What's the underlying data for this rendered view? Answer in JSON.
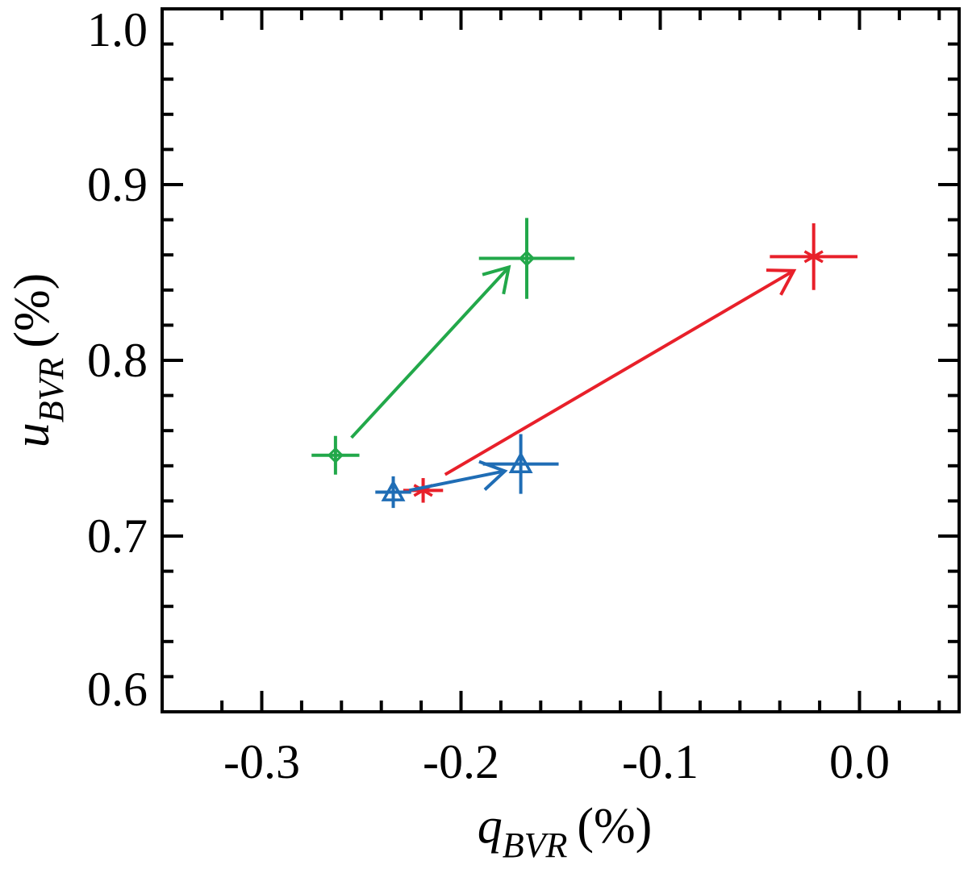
{
  "colors": {
    "green": "#22a84a",
    "red": "#e8202a",
    "blue": "#1f6db5",
    "axis": "#000000"
  },
  "chart_data": {
    "type": "scatter",
    "title": "",
    "xlabel": {
      "symbol": "q",
      "subscript": "BVR",
      "unit": "(%)"
    },
    "ylabel": {
      "symbol": "u",
      "subscript": "BVR",
      "unit": "(%)"
    },
    "xlim": [
      -0.35,
      0.05
    ],
    "ylim": [
      0.6,
      1.0
    ],
    "xticks": [
      -0.3,
      -0.2,
      -0.1,
      0.0
    ],
    "xtick_labels": [
      "-0.3",
      "-0.2",
      "-0.1",
      "0.0"
    ],
    "yticks": [
      0.6,
      0.7,
      0.8,
      0.9,
      1.0
    ],
    "ytick_labels": [
      "0.6",
      "0.7",
      "0.8",
      "0.9",
      "1.0"
    ],
    "grid": false,
    "series": [
      {
        "name": "green",
        "color": "green",
        "marker": "diamond",
        "points": [
          {
            "x": -0.263,
            "y": 0.746,
            "xerr": 0.012,
            "yerr": 0.011
          },
          {
            "x": -0.167,
            "y": 0.858,
            "xerr": 0.024,
            "yerr": 0.023
          }
        ],
        "arrow": {
          "from": [
            -0.255,
            0.756
          ],
          "to": [
            -0.176,
            0.853
          ]
        }
      },
      {
        "name": "red",
        "color": "red",
        "marker": "asterisk",
        "points": [
          {
            "x": -0.219,
            "y": 0.726,
            "xerr": 0.01,
            "yerr": 0.007
          },
          {
            "x": -0.023,
            "y": 0.859,
            "xerr": 0.022,
            "yerr": 0.019
          }
        ],
        "arrow": {
          "from": [
            -0.208,
            0.735
          ],
          "to": [
            -0.033,
            0.851
          ]
        }
      },
      {
        "name": "blue",
        "color": "blue",
        "marker": "triangle",
        "points": [
          {
            "x": -0.234,
            "y": 0.725,
            "xerr": 0.009,
            "yerr": 0.009
          },
          {
            "x": -0.17,
            "y": 0.741,
            "xerr": 0.019,
            "yerr": 0.017
          }
        ],
        "arrow": {
          "from": [
            -0.226,
            0.726
          ],
          "to": [
            -0.178,
            0.737
          ]
        }
      }
    ]
  }
}
